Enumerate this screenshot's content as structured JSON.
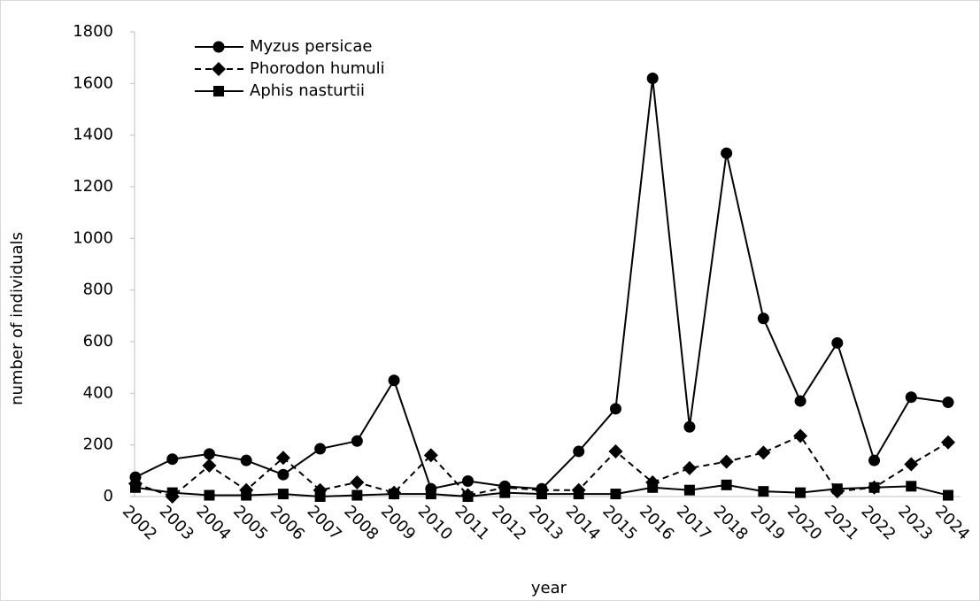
{
  "chart_data": {
    "type": "line",
    "x_label": "year",
    "y_label": "number of individuals",
    "categories": [
      "2002",
      "2003",
      "2004",
      "2005",
      "2006",
      "2007",
      "2008",
      "2009",
      "2010",
      "2011",
      "2012",
      "2013",
      "2014",
      "2015",
      "2016",
      "2017",
      "2018",
      "2019",
      "2020",
      "2021",
      "2022",
      "2023",
      "2024"
    ],
    "series": [
      {
        "name": "Myzus persicae",
        "color": "#000000",
        "marker": "circle",
        "dash": false,
        "values": [
          75,
          145,
          165,
          140,
          85,
          185,
          215,
          450,
          30,
          60,
          40,
          30,
          175,
          340,
          1620,
          270,
          1330,
          690,
          370,
          595,
          140,
          385,
          365
        ]
      },
      {
        "name": "Phorodon humuli",
        "color": "#000000",
        "marker": "diamond",
        "dash": true,
        "values": [
          50,
          0,
          120,
          25,
          150,
          25,
          55,
          15,
          160,
          5,
          35,
          25,
          25,
          175,
          55,
          110,
          135,
          170,
          235,
          20,
          35,
          125,
          210
        ]
      },
      {
        "name": "Aphis nasturtii",
        "color": "#000000",
        "marker": "square",
        "dash": false,
        "values": [
          35,
          15,
          5,
          5,
          10,
          0,
          5,
          10,
          10,
          0,
          15,
          10,
          10,
          10,
          35,
          25,
          45,
          20,
          15,
          30,
          35,
          40,
          5
        ]
      }
    ],
    "ylim": [
      0,
      1800
    ],
    "yticks": [
      0,
      200,
      400,
      600,
      800,
      1000,
      1200,
      1400,
      1600,
      1800
    ],
    "grid": false,
    "legend": "top-left"
  }
}
